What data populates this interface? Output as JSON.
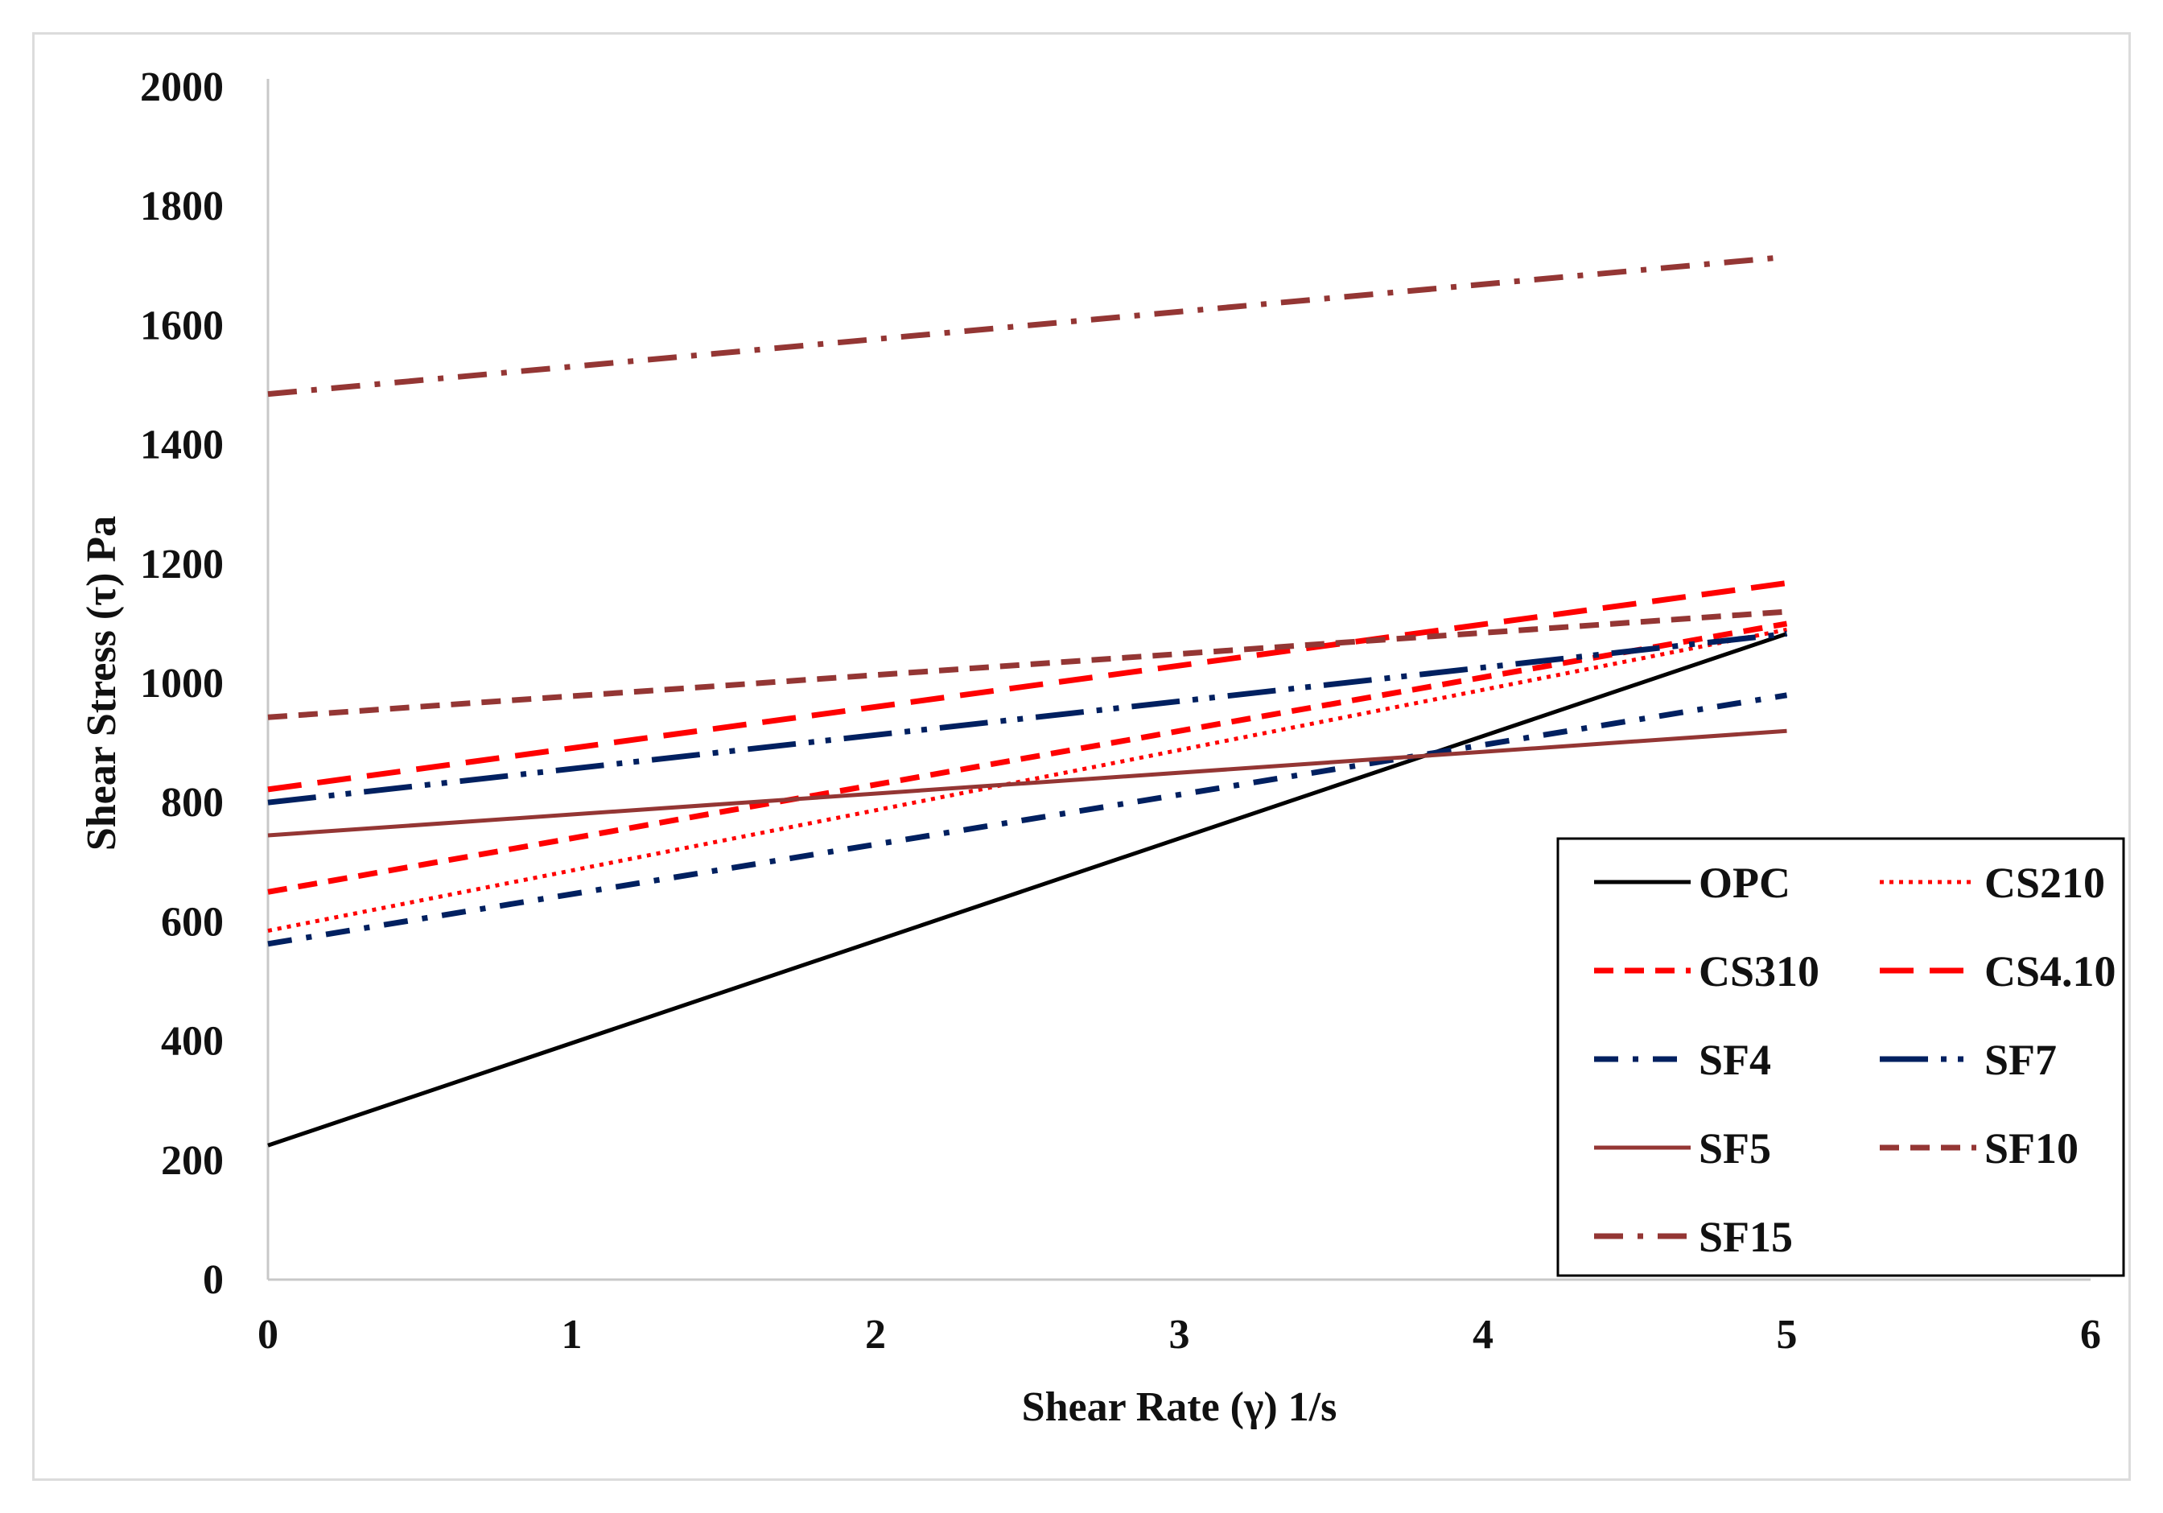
{
  "chart_data": {
    "type": "line",
    "title": "",
    "xlabel": "Shear Rate (γ) 1/s",
    "ylabel": "Shear Stress (τ) Pa",
    "xlim": [
      0,
      6
    ],
    "ylim": [
      0,
      2000
    ],
    "xticks": [
      "0",
      "1",
      "2",
      "3",
      "4",
      "5",
      "6"
    ],
    "yticks": [
      "0",
      "200",
      "400",
      "600",
      "800",
      "1000",
      "1200",
      "1400",
      "1600",
      "1800",
      "2000"
    ],
    "grid": false,
    "legend_position": "bottom-right",
    "series": [
      {
        "name": "OPC",
        "x": [
          0,
          5
        ],
        "y": [
          225,
          1083
        ],
        "color": "#000000",
        "style": "solid"
      },
      {
        "name": "CS210",
        "x": [
          0,
          5
        ],
        "y": [
          585,
          1090
        ],
        "color": "#ff0000",
        "style": "dotted"
      },
      {
        "name": "CS310",
        "x": [
          0,
          5
        ],
        "y": [
          650,
          1100
        ],
        "color": "#ff0000",
        "style": "dashed-short"
      },
      {
        "name": "CS4.10",
        "x": [
          0,
          5
        ],
        "y": [
          822,
          1168
        ],
        "color": "#ff0000",
        "style": "dashed-long"
      },
      {
        "name": "SF4",
        "x": [
          0,
          5
        ],
        "y": [
          563,
          980
        ],
        "color": "#002060",
        "style": "dash-dot"
      },
      {
        "name": "SF7",
        "x": [
          0,
          5
        ],
        "y": [
          800,
          1083
        ],
        "color": "#002060",
        "style": "long-dash-dot-dot"
      },
      {
        "name": "SF5",
        "x": [
          0,
          5
        ],
        "y": [
          745,
          920
        ],
        "color": "#943634",
        "style": "solid"
      },
      {
        "name": "SF10",
        "x": [
          0,
          5
        ],
        "y": [
          943,
          1120
        ],
        "color": "#943634",
        "style": "dashed-short"
      },
      {
        "name": "SF15",
        "x": [
          0,
          5
        ],
        "y": [
          1485,
          1715
        ],
        "color": "#943634",
        "style": "dash-dot-long"
      }
    ]
  }
}
